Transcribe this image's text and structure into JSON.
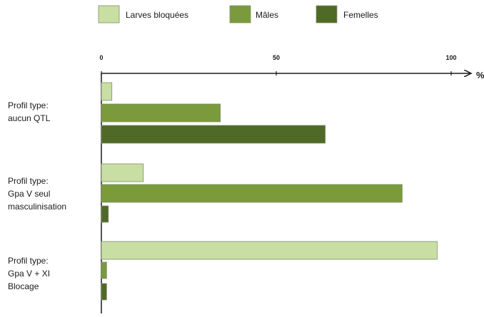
{
  "colors": {
    "Larves bloquées": "#c9dea2",
    "Mâles": "#7a9a3c",
    "Femelles": "#4f6a26",
    "bar_stroke": "#7f8f6a",
    "axis": "#1a1a1a"
  },
  "chart_data": {
    "type": "bar",
    "orientation": "horizontal",
    "xlim": [
      0,
      100
    ],
    "x_ticks": [
      "0",
      "50",
      "100"
    ],
    "unit": "%",
    "legend": {
      "position": "top",
      "entries": [
        "Larves bloquées",
        "Mâles",
        "Femelles"
      ]
    },
    "grid": false,
    "categories": [
      [
        "Profil type:",
        "aucun QTL"
      ],
      [
        "Profil type:",
        "Gpa V seul",
        "masculinisation"
      ],
      [
        "Profil type:",
        "Gpa V + XI",
        "Blocage"
      ]
    ],
    "series": [
      {
        "name": "Larves bloquées",
        "values": [
          3,
          12,
          96
        ]
      },
      {
        "name": "Mâles",
        "values": [
          34,
          86,
          1.5
        ]
      },
      {
        "name": "Femelles",
        "values": [
          64,
          2,
          1.5
        ]
      }
    ]
  }
}
